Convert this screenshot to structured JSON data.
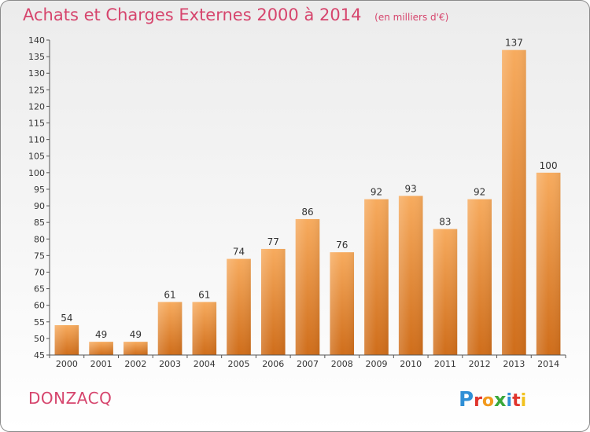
{
  "chart_data": {
    "type": "bar",
    "title": "Achats et Charges Externes 2000 à 2014",
    "unit_note": "(en milliers d'€)",
    "categories": [
      "2000",
      "2001",
      "2002",
      "2003",
      "2004",
      "2005",
      "2006",
      "2007",
      "2008",
      "2009",
      "2010",
      "2011",
      "2012",
      "2013",
      "2014"
    ],
    "values": [
      54,
      49,
      49,
      61,
      61,
      74,
      77,
      86,
      76,
      92,
      93,
      83,
      92,
      137,
      100
    ],
    "ylim": [
      45,
      140
    ],
    "yticks": [
      45,
      50,
      55,
      60,
      65,
      70,
      75,
      80,
      85,
      90,
      95,
      100,
      105,
      110,
      115,
      120,
      125,
      130,
      135,
      140
    ],
    "xlabel": "",
    "ylabel": "",
    "grid": false,
    "bar_color": "#f08a2c"
  },
  "footer": {
    "place_name": "DONZACQ",
    "brand": "Proxiti"
  },
  "colors": {
    "title": "#d6456d",
    "bar_light": "#f6a85a",
    "bar_dark": "#d2701c",
    "axis": "#555555"
  }
}
